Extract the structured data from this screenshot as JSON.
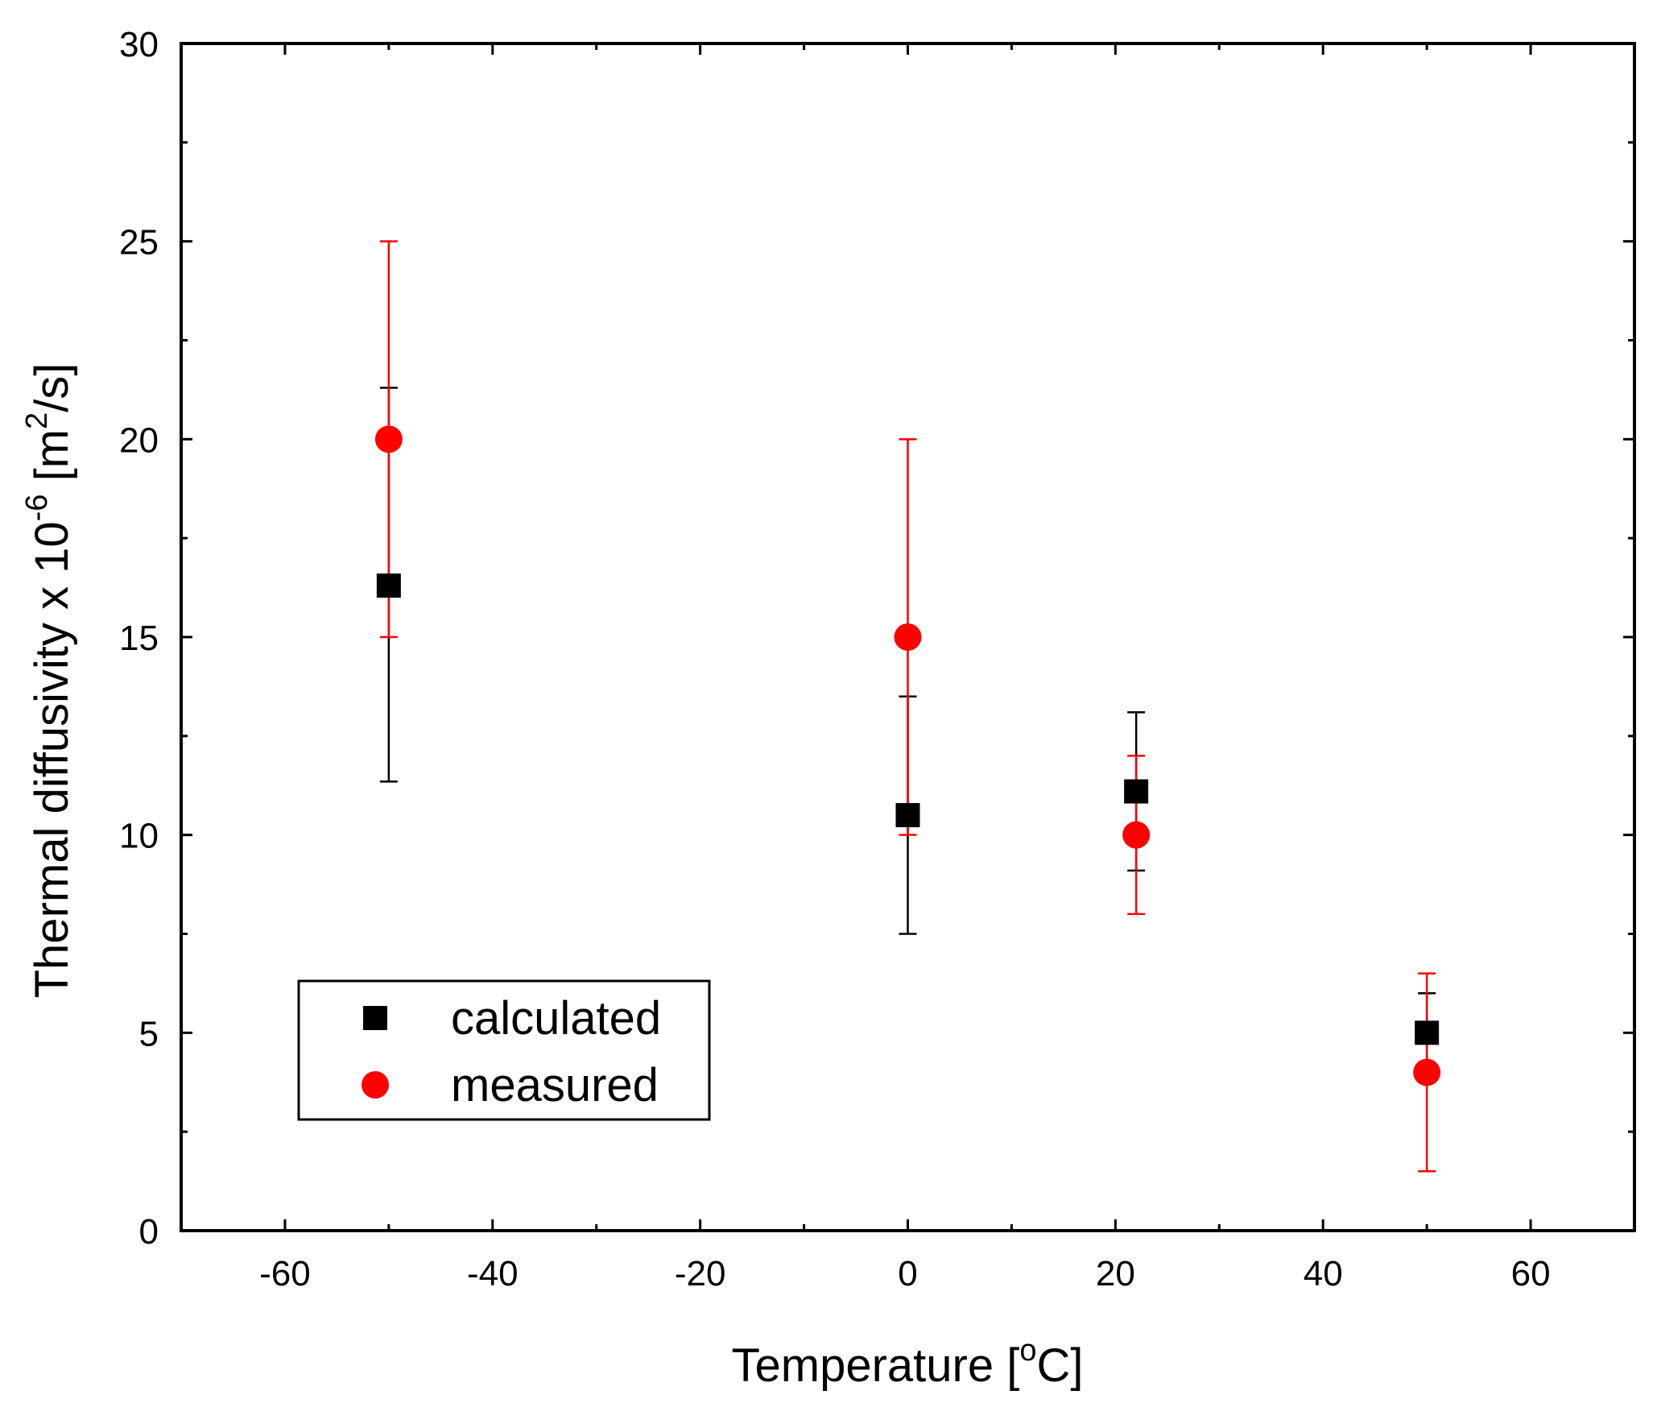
{
  "chart_data": {
    "type": "scatter",
    "title": "",
    "xlabel": "Temperature [°C]",
    "xlabel_parts": {
      "main": "Temperature [",
      "sup": "o",
      "tail": "C]"
    },
    "ylabel": "Thermal diffusivity x 10^-6 [m^2/s]",
    "ylabel_parts": {
      "main": "Thermal diffusivity x 10",
      "sup1": "-6",
      "mid": " [m",
      "sup2": "2",
      "tail": "/s]"
    },
    "xlim": [
      -70,
      70
    ],
    "ylim": [
      0,
      30
    ],
    "x_ticks": [
      -60,
      -40,
      -20,
      0,
      20,
      40,
      60
    ],
    "x_tick_labels": [
      "-60",
      "-40",
      "-20",
      "0",
      "20",
      "40",
      "60"
    ],
    "x_minor_step": 10,
    "y_ticks": [
      0,
      5,
      10,
      15,
      20,
      25,
      30
    ],
    "y_tick_labels": [
      "0",
      "5",
      "10",
      "15",
      "20",
      "25",
      "30"
    ],
    "y_minor_step": 2.5,
    "grid": false,
    "legend_position": "bottom-left",
    "series": [
      {
        "name": "calculated",
        "marker": "square",
        "color": "#000000",
        "points": [
          {
            "x": -50,
            "y": 16.3,
            "err_low": 11.35,
            "err_high": 21.3
          },
          {
            "x": 0,
            "y": 10.5,
            "err_low": 7.5,
            "err_high": 13.5
          },
          {
            "x": 22,
            "y": 11.1,
            "err_low": 9.1,
            "err_high": 13.1
          },
          {
            "x": 50,
            "y": 5.0,
            "err_low": 4.0,
            "err_high": 6.0
          }
        ]
      },
      {
        "name": "measured",
        "marker": "circle",
        "color": "#ff0000",
        "points": [
          {
            "x": -50,
            "y": 20.0,
            "err_low": 15.0,
            "err_high": 25.0
          },
          {
            "x": 0,
            "y": 15.0,
            "err_low": 10.0,
            "err_high": 20.0
          },
          {
            "x": 22,
            "y": 10.0,
            "err_low": 8.0,
            "err_high": 12.0
          },
          {
            "x": 50,
            "y": 4.0,
            "err_low": 1.5,
            "err_high": 6.5
          }
        ]
      }
    ]
  }
}
